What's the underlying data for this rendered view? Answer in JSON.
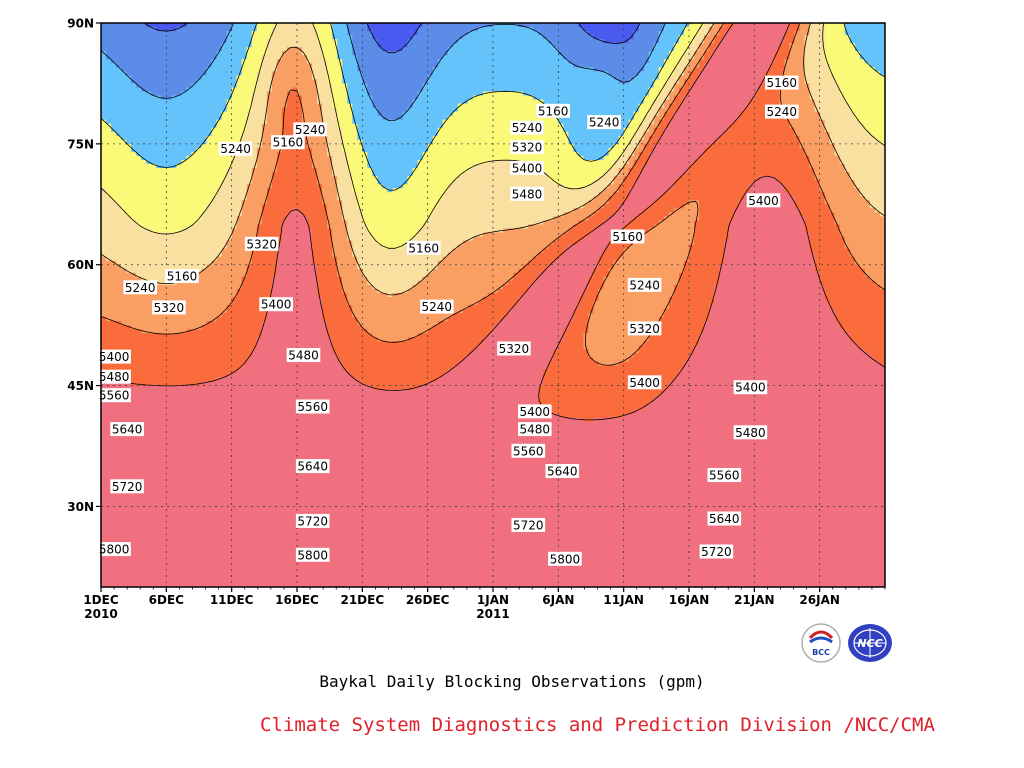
{
  "caption": "Baykal Daily Blocking Observations (gpm)",
  "credit": "Climate System Diagnostics and Prediction Division /NCC/CMA",
  "credit_color": "#e0202a",
  "logos": [
    {
      "name": "bcc-logo",
      "text": "BCC"
    },
    {
      "name": "ncc-logo",
      "text": "NCC"
    }
  ],
  "chart_data": {
    "type": "heatmap",
    "title": "Baykal Daily Blocking Observations (gpm)",
    "x_ticks": [
      {
        "label": "1DEC",
        "sub": "2010"
      },
      {
        "label": "6DEC",
        "sub": ""
      },
      {
        "label": "11DEC",
        "sub": ""
      },
      {
        "label": "16DEC",
        "sub": ""
      },
      {
        "label": "21DEC",
        "sub": ""
      },
      {
        "label": "26DEC",
        "sub": ""
      },
      {
        "label": "1JAN",
        "sub": "2011"
      },
      {
        "label": "6JAN",
        "sub": ""
      },
      {
        "label": "11JAN",
        "sub": ""
      },
      {
        "label": "16JAN",
        "sub": ""
      },
      {
        "label": "21JAN",
        "sub": ""
      },
      {
        "label": "26JAN",
        "sub": ""
      }
    ],
    "x_day_range": [
      0,
      60
    ],
    "y_ticks": [
      "30N",
      "45N",
      "60N",
      "75N",
      "90N"
    ],
    "y_tick_values": [
      30,
      45,
      60,
      75,
      90
    ],
    "ylim": [
      20,
      90
    ],
    "grid": true,
    "contour_levels": [
      5160,
      5240,
      5320,
      5400,
      5480,
      5560,
      5640,
      5720,
      5800
    ],
    "fill_colors": [
      "#101878",
      "#1a28e6",
      "#4a5af0",
      "#5a8ce8",
      "#64c3fa",
      "#fafa78",
      "#fae0a0",
      "#fa9f64",
      "#fa6c3c",
      "#f07080"
    ],
    "contour_labels": [
      {
        "text": "5160",
        "day": 6.2,
        "lat": 58.6
      },
      {
        "text": "5240",
        "day": 3.0,
        "lat": 57.2
      },
      {
        "text": "5320",
        "day": 5.2,
        "lat": 54.7
      },
      {
        "text": "5400",
        "day": 1.0,
        "lat": 48.6
      },
      {
        "text": "5480",
        "day": 1.0,
        "lat": 46.1
      },
      {
        "text": "5560",
        "day": 1.0,
        "lat": 43.8
      },
      {
        "text": "5640",
        "day": 2.0,
        "lat": 39.6
      },
      {
        "text": "5720",
        "day": 2.0,
        "lat": 32.5
      },
      {
        "text": "5800",
        "day": 1.0,
        "lat": 24.7
      },
      {
        "text": "5240",
        "day": 10.3,
        "lat": 74.4
      },
      {
        "text": "5160",
        "day": 14.3,
        "lat": 75.2
      },
      {
        "text": "5240",
        "day": 16.0,
        "lat": 76.8
      },
      {
        "text": "5320",
        "day": 12.3,
        "lat": 62.6
      },
      {
        "text": "5400",
        "day": 13.4,
        "lat": 55.1
      },
      {
        "text": "5480",
        "day": 15.5,
        "lat": 48.8
      },
      {
        "text": "5560",
        "day": 16.2,
        "lat": 42.4
      },
      {
        "text": "5640",
        "day": 16.2,
        "lat": 35.0
      },
      {
        "text": "5720",
        "day": 16.2,
        "lat": 28.2
      },
      {
        "text": "5800",
        "day": 16.2,
        "lat": 24.0
      },
      {
        "text": "5160",
        "day": 24.7,
        "lat": 62.1
      },
      {
        "text": "5240",
        "day": 25.7,
        "lat": 54.8
      },
      {
        "text": "5320",
        "day": 31.6,
        "lat": 49.6
      },
      {
        "text": "5400",
        "day": 33.2,
        "lat": 41.8
      },
      {
        "text": "5480",
        "day": 33.2,
        "lat": 39.6
      },
      {
        "text": "5560",
        "day": 32.7,
        "lat": 36.9
      },
      {
        "text": "5640",
        "day": 35.3,
        "lat": 34.4
      },
      {
        "text": "5720",
        "day": 32.7,
        "lat": 27.7
      },
      {
        "text": "5800",
        "day": 35.5,
        "lat": 23.5
      },
      {
        "text": "5160",
        "day": 34.6,
        "lat": 79.1
      },
      {
        "text": "5240",
        "day": 32.6,
        "lat": 77.0
      },
      {
        "text": "5320",
        "day": 32.6,
        "lat": 74.6
      },
      {
        "text": "5400",
        "day": 32.6,
        "lat": 72.0
      },
      {
        "text": "5480",
        "day": 32.6,
        "lat": 68.8
      },
      {
        "text": "5240",
        "day": 38.5,
        "lat": 77.7
      },
      {
        "text": "5160",
        "day": 40.3,
        "lat": 63.5
      },
      {
        "text": "5240",
        "day": 41.6,
        "lat": 57.5
      },
      {
        "text": "5320",
        "day": 41.6,
        "lat": 52.1
      },
      {
        "text": "5400",
        "day": 41.6,
        "lat": 45.4
      },
      {
        "text": "5480",
        "day": 49.7,
        "lat": 39.2
      },
      {
        "text": "5560",
        "day": 47.7,
        "lat": 33.9
      },
      {
        "text": "5640",
        "day": 47.7,
        "lat": 28.5
      },
      {
        "text": "5720",
        "day": 47.1,
        "lat": 24.4
      },
      {
        "text": "5160",
        "day": 52.1,
        "lat": 82.6
      },
      {
        "text": "5240",
        "day": 52.1,
        "lat": 79.0
      },
      {
        "text": "5400",
        "day": 50.7,
        "lat": 68.0
      },
      {
        "text": "5400",
        "day": 49.7,
        "lat": 44.8
      }
    ]
  }
}
